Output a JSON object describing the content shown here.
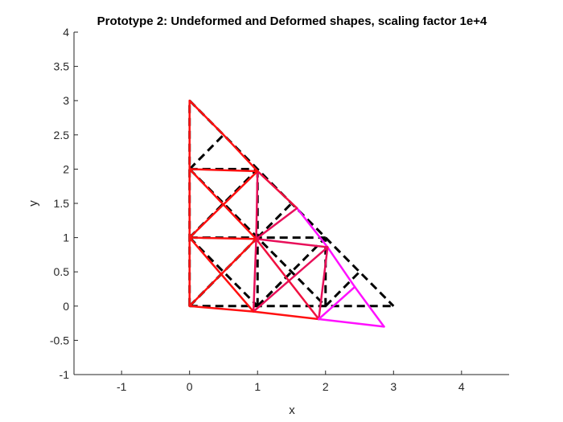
{
  "chart_data": {
    "type": "line",
    "title": "Prototype 2: Undeformed and Deformed shapes, scaling factor 1e+4",
    "xlabel": "x",
    "ylabel": "y",
    "xlim": [
      -1.7,
      4.7
    ],
    "ylim": [
      -1,
      4
    ],
    "x_ticks": [
      "-1",
      "0",
      "1",
      "2",
      "3",
      "4"
    ],
    "y_ticks": [
      "-1",
      "-0.5",
      "0",
      "0.5",
      "1",
      "1.5",
      "2",
      "2.5",
      "3",
      "3.5",
      "4"
    ],
    "grid": false,
    "legend": "none",
    "series": [
      {
        "style": "dashed",
        "color": "#000000",
        "segments": [
          [
            [
              0,
              0
            ],
            [
              3,
              0
            ]
          ],
          [
            [
              0,
              0
            ],
            [
              0,
              3
            ]
          ],
          [
            [
              0,
              3
            ],
            [
              3,
              0
            ]
          ],
          [
            [
              0,
              1
            ],
            [
              2,
              1
            ]
          ],
          [
            [
              0,
              2
            ],
            [
              1,
              2
            ]
          ],
          [
            [
              1,
              0
            ],
            [
              1,
              2
            ]
          ],
          [
            [
              2,
              0
            ],
            [
              2,
              1
            ]
          ],
          [
            [
              0,
              1
            ],
            [
              1,
              0
            ]
          ],
          [
            [
              0,
              2
            ],
            [
              2,
              0
            ]
          ],
          [
            [
              0,
              0
            ],
            [
              1,
              1
            ]
          ],
          [
            [
              1,
              0
            ],
            [
              2,
              1
            ]
          ],
          [
            [
              0,
              1
            ],
            [
              1,
              2
            ]
          ],
          [
            [
              0,
              0
            ],
            [
              0.5,
              0.5
            ]
          ],
          [
            [
              0,
              1
            ],
            [
              0.5,
              1.5
            ]
          ],
          [
            [
              0,
              2
            ],
            [
              0.5,
              2.5
            ]
          ],
          [
            [
              1,
              1
            ],
            [
              1.5,
              1.5
            ]
          ],
          [
            [
              1,
              0
            ],
            [
              1.5,
              0.5
            ]
          ],
          [
            [
              2,
              0
            ],
            [
              2.5,
              0.5
            ]
          ]
        ]
      },
      {
        "style": "solid",
        "colors": [
          "#ff1010",
          "#e8105a",
          "#ff10ff"
        ],
        "segments": [
          {
            "p": [
              [
                0,
                0
              ],
              [
                0,
                1
              ]
            ],
            "c": "#ff1010"
          },
          {
            "p": [
              [
                0,
                1
              ],
              [
                0,
                2
              ]
            ],
            "c": "#ff1010"
          },
          {
            "p": [
              [
                0,
                2
              ],
              [
                0,
                3
              ]
            ],
            "c": "#ff1010"
          },
          {
            "p": [
              [
                0,
                3
              ],
              [
                0.5,
                2.5
              ]
            ],
            "c": "#ff1010"
          },
          {
            "p": [
              [
                0.5,
                2.5
              ],
              [
                1,
                1.97
              ]
            ],
            "c": "#ff1010"
          },
          {
            "p": [
              [
                1,
                1.97
              ],
              [
                1.58,
                1.43
              ]
            ],
            "c": "#f01040"
          },
          {
            "p": [
              [
                1.58,
                1.43
              ],
              [
                2.03,
                0.86
              ]
            ],
            "c": "#ff10ff"
          },
          {
            "p": [
              [
                2.03,
                0.86
              ],
              [
                2.43,
                0.28
              ]
            ],
            "c": "#ff10ff"
          },
          {
            "p": [
              [
                2.43,
                0.28
              ],
              [
                2.86,
                -0.3
              ]
            ],
            "c": "#ff10ff"
          },
          {
            "p": [
              [
                0,
                0
              ],
              [
                0.94,
                -0.08
              ]
            ],
            "c": "#ff1010"
          },
          {
            "p": [
              [
                0.94,
                -0.08
              ],
              [
                1.9,
                -0.19
              ]
            ],
            "c": "#ff1010"
          },
          {
            "p": [
              [
                1.9,
                -0.19
              ],
              [
                2.86,
                -0.3
              ]
            ],
            "c": "#ff10ff"
          },
          {
            "p": [
              [
                0,
                1
              ],
              [
                0.98,
                0.98
              ]
            ],
            "c": "#ff1010"
          },
          {
            "p": [
              [
                0.98,
                0.98
              ],
              [
                2.03,
                0.86
              ]
            ],
            "c": "#e8105a"
          },
          {
            "p": [
              [
                0,
                2
              ],
              [
                1,
                1.97
              ]
            ],
            "c": "#ff1010"
          },
          {
            "p": [
              [
                0.98,
                0.98
              ],
              [
                1,
                1.97
              ]
            ],
            "c": "#e8105a"
          },
          {
            "p": [
              [
                0.94,
                -0.08
              ],
              [
                0.98,
                0.98
              ]
            ],
            "c": "#e8105a"
          },
          {
            "p": [
              [
                1.9,
                -0.19
              ],
              [
                2.03,
                0.86
              ]
            ],
            "c": "#e8105a"
          },
          {
            "p": [
              [
                0,
                0
              ],
              [
                0.98,
                0.98
              ]
            ],
            "c": "#ff1010"
          },
          {
            "p": [
              [
                0.98,
                0.98
              ],
              [
                1.58,
                1.43
              ]
            ],
            "c": "#e8105a"
          },
          {
            "p": [
              [
                0,
                1
              ],
              [
                1,
                1.97
              ]
            ],
            "c": "#ff1010"
          },
          {
            "p": [
              [
                0.94,
                -0.08
              ],
              [
                2.03,
                0.86
              ]
            ],
            "c": "#e8105a"
          },
          {
            "p": [
              [
                0,
                1
              ],
              [
                0.94,
                -0.08
              ]
            ],
            "c": "#ff1010"
          },
          {
            "p": [
              [
                0,
                2
              ],
              [
                0.98,
                0.98
              ]
            ],
            "c": "#ff1010"
          },
          {
            "p": [
              [
                0.98,
                0.98
              ],
              [
                1.9,
                -0.19
              ]
            ],
            "c": "#f01040"
          },
          {
            "p": [
              [
                1.9,
                -0.19
              ],
              [
                2.43,
                0.28
              ]
            ],
            "c": "#ff10ff"
          }
        ]
      }
    ]
  }
}
